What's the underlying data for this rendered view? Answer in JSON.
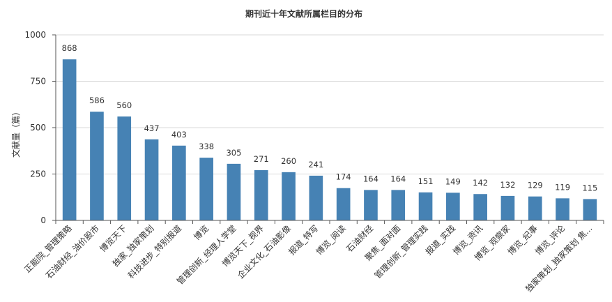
{
  "chart_data": {
    "type": "bar",
    "title": "期刊近十年文献所属栏目的分布",
    "xlabel": "",
    "ylabel": "文献量（篇）",
    "ylim": [
      0,
      1000
    ],
    "yticks": [
      "0",
      "250",
      "500",
      "750",
      "1000"
    ],
    "grid": true,
    "color": "#4682b4",
    "categories": [
      "正能院_管理策略",
      "石油财经_油价股市",
      "博览天下",
      "独家_独家策划",
      "科技进步_特别报道",
      "博览",
      "管理创新_经理人学堂",
      "博览天下_视界",
      "企业文化_石油影像",
      "报道_特写",
      "博览_阅读",
      "石油财经",
      "聚焦_面对面",
      "管理创新_管理实践",
      "报道_实践",
      "博览_资讯",
      "博览_观察家",
      "博览_纪事",
      "博览_评论",
      "独家策划_独家策划 焦..."
    ],
    "values": [
      868,
      586,
      560,
      437,
      403,
      338,
      305,
      271,
      260,
      241,
      174,
      164,
      164,
      151,
      149,
      142,
      132,
      129,
      119,
      115
    ]
  }
}
